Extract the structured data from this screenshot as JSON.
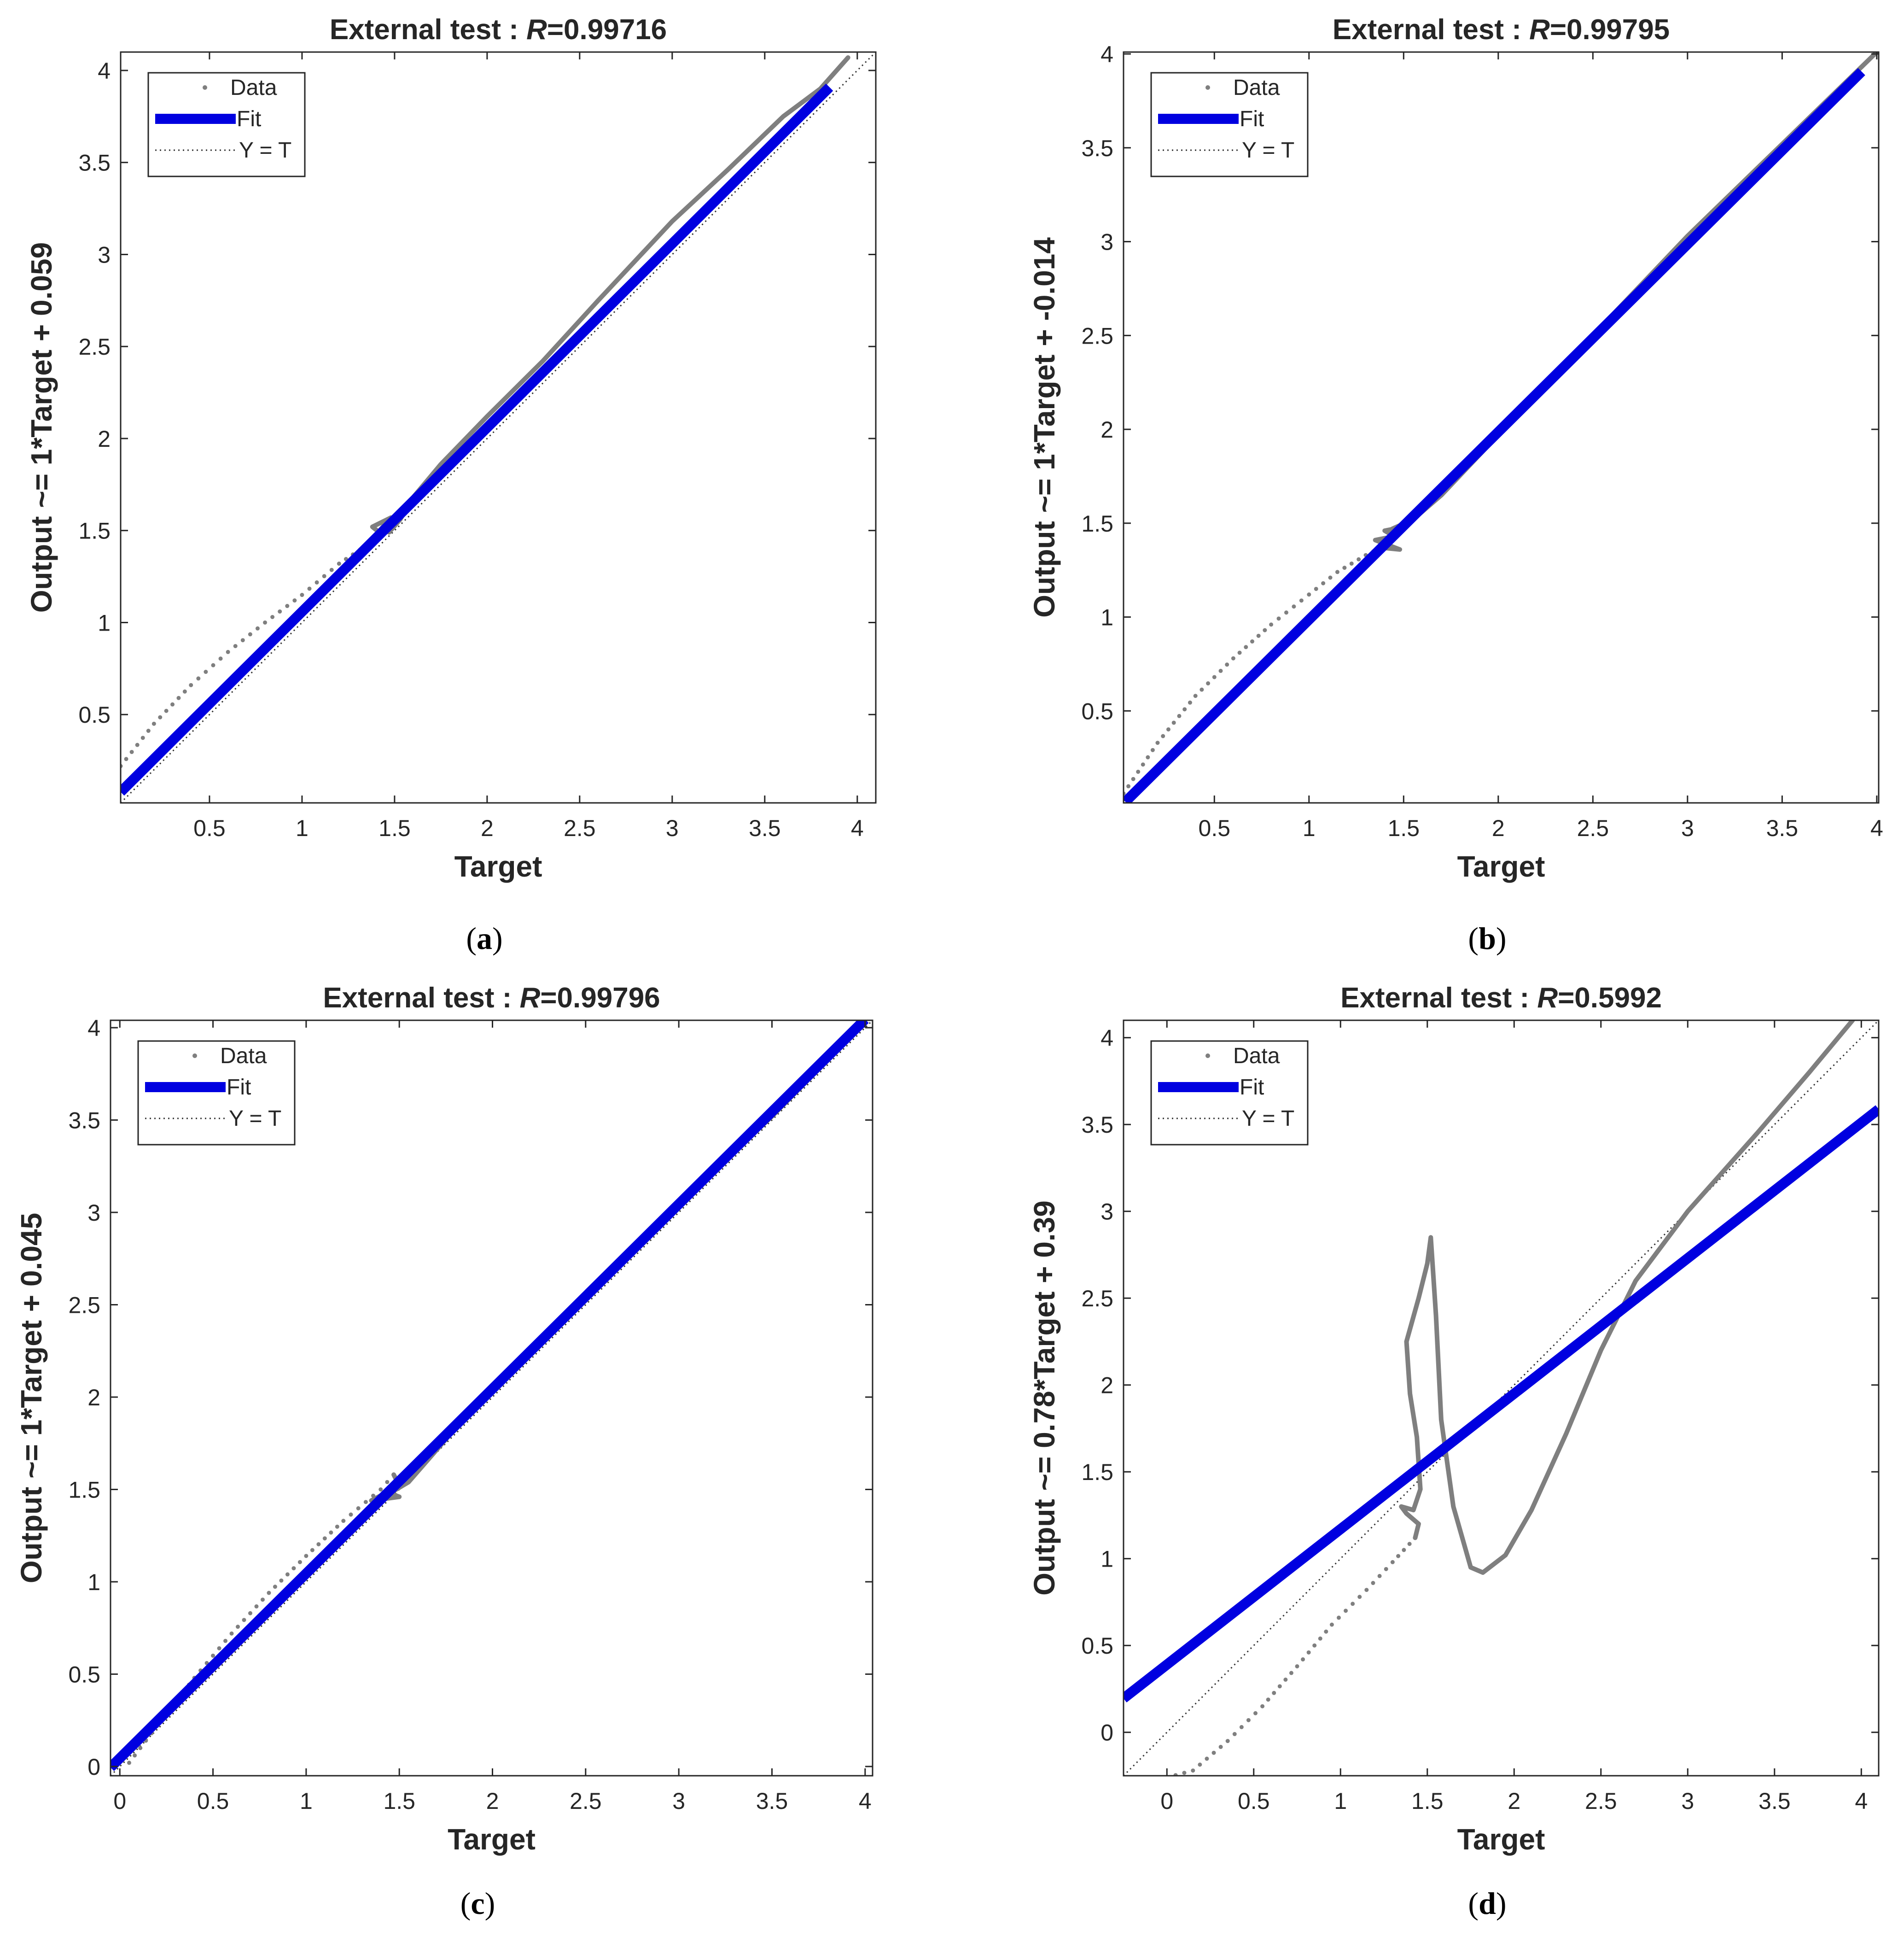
{
  "legend_labels": {
    "data": "Data",
    "fit": "Fit",
    "identity": "Y = T"
  },
  "colors": {
    "data": "#7f7f7f",
    "fit": "#0000e0",
    "identity": "#333333",
    "axis": "#262626"
  },
  "chart_data": [
    {
      "id": "a",
      "type": "scatter",
      "caption": "a",
      "title_prefix": "External test : ",
      "title_r_symbol": "R",
      "title_r_value": "=0.99716",
      "xlabel": "Target",
      "ylabel": "Output ~= 1*Target + 0.059",
      "xlim": [
        0.02,
        4.1
      ],
      "ylim": [
        0.02,
        4.1
      ],
      "xticks": [
        "0.5",
        "1",
        "1.5",
        "2",
        "2.5",
        "3",
        "3.5",
        "4"
      ],
      "yticks": [
        "0.5",
        "1",
        "1.5",
        "2",
        "2.5",
        "3",
        "3.5",
        "4"
      ],
      "fit": {
        "slope": 1.0,
        "intercept": 0.059,
        "x_range": [
          0.02,
          3.85
        ]
      },
      "data_segments": [
        {
          "style": "dots",
          "points": [
            [
              0.02,
              0.22
            ],
            [
              0.2,
              0.45
            ],
            [
              0.4,
              0.66
            ],
            [
              0.6,
              0.84
            ],
            [
              0.8,
              1.0
            ],
            [
              1.0,
              1.15
            ],
            [
              1.2,
              1.32
            ],
            [
              1.35,
              1.42
            ],
            [
              1.43,
              1.48
            ]
          ]
        },
        {
          "style": "line",
          "points": [
            [
              1.43,
              1.48
            ],
            [
              1.38,
              1.52
            ],
            [
              1.48,
              1.57
            ],
            [
              1.42,
              1.5
            ],
            [
              1.5,
              1.55
            ],
            [
              1.47,
              1.49
            ],
            [
              1.53,
              1.56
            ],
            [
              1.6,
              1.68
            ],
            [
              1.75,
              1.86
            ],
            [
              2.0,
              2.12
            ],
            [
              2.3,
              2.42
            ],
            [
              2.6,
              2.75
            ],
            [
              3.0,
              3.18
            ],
            [
              3.3,
              3.46
            ],
            [
              3.6,
              3.75
            ],
            [
              3.8,
              3.9
            ],
            [
              3.95,
              4.07
            ]
          ]
        }
      ]
    },
    {
      "id": "b",
      "type": "scatter",
      "caption": "b",
      "title_prefix": "External test : ",
      "title_r_symbol": "R",
      "title_r_value": "=0.99795",
      "xlabel": "Target",
      "ylabel": "Output ~= 1*Target + -0.014",
      "xlim": [
        0.02,
        4.01
      ],
      "ylim": [
        0.01,
        4.01
      ],
      "xticks": [
        "0.5",
        "1",
        "1.5",
        "2",
        "2.5",
        "3",
        "3.5",
        "4"
      ],
      "yticks": [
        "0.5",
        "1",
        "1.5",
        "2",
        "2.5",
        "3",
        "3.5",
        "4"
      ],
      "fit": {
        "slope": 1.0,
        "intercept": -0.014,
        "x_range": [
          0.03,
          3.92
        ]
      },
      "data_segments": [
        {
          "style": "dots",
          "points": [
            [
              0.02,
              0.06
            ],
            [
              0.2,
              0.33
            ],
            [
              0.4,
              0.58
            ],
            [
              0.6,
              0.78
            ],
            [
              0.8,
              0.96
            ],
            [
              1.0,
              1.12
            ],
            [
              1.15,
              1.24
            ],
            [
              1.3,
              1.33
            ],
            [
              1.38,
              1.37
            ]
          ]
        },
        {
          "style": "line",
          "points": [
            [
              1.38,
              1.37
            ],
            [
              1.48,
              1.36
            ],
            [
              1.35,
              1.41
            ],
            [
              1.45,
              1.43
            ],
            [
              1.4,
              1.46
            ],
            [
              1.5,
              1.48
            ],
            [
              1.44,
              1.47
            ],
            [
              1.55,
              1.52
            ],
            [
              1.7,
              1.65
            ],
            [
              2.0,
              1.97
            ],
            [
              2.5,
              2.5
            ],
            [
              3.0,
              3.03
            ],
            [
              3.5,
              3.52
            ],
            [
              4.0,
              4.01
            ]
          ]
        }
      ]
    },
    {
      "id": "c",
      "type": "scatter",
      "caption": "c",
      "title_prefix": "External test : ",
      "title_r_symbol": "R",
      "title_r_value": "=0.99796",
      "xlabel": "Target",
      "ylabel": "Output ~= 1*Target + 0.045",
      "xlim": [
        -0.05,
        4.04
      ],
      "ylim": [
        -0.05,
        4.04
      ],
      "xticks": [
        "0",
        "0.5",
        "1",
        "1.5",
        "2",
        "2.5",
        "3",
        "3.5",
        "4"
      ],
      "yticks": [
        "0",
        "0.5",
        "1",
        "1.5",
        "2",
        "2.5",
        "3",
        "3.5",
        "4"
      ],
      "fit": {
        "slope": 1.0,
        "intercept": 0.045,
        "x_range": [
          -0.05,
          4.0
        ]
      },
      "data_segments": [
        {
          "style": "dots",
          "points": [
            [
              0.05,
              0.02
            ],
            [
              0.2,
              0.22
            ],
            [
              0.4,
              0.48
            ],
            [
              0.6,
              0.72
            ],
            [
              0.8,
              0.94
            ],
            [
              1.0,
              1.14
            ],
            [
              1.2,
              1.33
            ],
            [
              1.4,
              1.5
            ],
            [
              1.47,
              1.58
            ]
          ]
        },
        {
          "style": "line",
          "points": [
            [
              1.47,
              1.58
            ],
            [
              1.5,
              1.52
            ],
            [
              1.35,
              1.44
            ],
            [
              1.5,
              1.46
            ],
            [
              1.45,
              1.48
            ],
            [
              1.55,
              1.54
            ],
            [
              1.8,
              1.83
            ],
            [
              2.2,
              2.24
            ],
            [
              2.6,
              2.64
            ],
            [
              3.0,
              3.05
            ],
            [
              3.5,
              3.52
            ],
            [
              4.0,
              4.03
            ]
          ]
        }
      ]
    },
    {
      "id": "d",
      "type": "scatter",
      "caption": "d",
      "title_prefix": "External test : ",
      "title_r_symbol": "R",
      "title_r_value": "=0.5992",
      "xlabel": "Target",
      "ylabel": "Output ~= 0.78*Target + 0.39",
      "xlim": [
        -0.25,
        4.1
      ],
      "ylim": [
        -0.25,
        4.1
      ],
      "xticks": [
        "0",
        "0.5",
        "1",
        "1.5",
        "2",
        "2.5",
        "3",
        "3.5",
        "4"
      ],
      "yticks": [
        "0",
        "0.5",
        "1",
        "1.5",
        "2",
        "2.5",
        "3",
        "3.5",
        "4"
      ],
      "fit": {
        "slope": 0.78,
        "intercept": 0.39,
        "x_range": [
          -0.25,
          4.1
        ]
      },
      "data_segments": [
        {
          "style": "dots",
          "points": [
            [
              0.0,
              -0.26
            ],
            [
              0.15,
              -0.22
            ],
            [
              0.35,
              -0.05
            ],
            [
              0.55,
              0.15
            ],
            [
              0.75,
              0.38
            ],
            [
              0.95,
              0.62
            ],
            [
              1.15,
              0.82
            ],
            [
              1.3,
              0.98
            ],
            [
              1.43,
              1.12
            ]
          ]
        },
        {
          "style": "line",
          "points": [
            [
              1.43,
              1.12
            ],
            [
              1.45,
              1.2
            ],
            [
              1.38,
              1.26
            ],
            [
              1.35,
              1.3
            ],
            [
              1.42,
              1.28
            ],
            [
              1.46,
              1.4
            ],
            [
              1.44,
              1.7
            ],
            [
              1.4,
              1.95
            ],
            [
              1.38,
              2.25
            ],
            [
              1.45,
              2.5
            ],
            [
              1.5,
              2.7
            ],
            [
              1.52,
              2.85
            ],
            [
              1.55,
              2.4
            ],
            [
              1.58,
              1.8
            ],
            [
              1.65,
              1.3
            ],
            [
              1.75,
              0.95
            ],
            [
              1.82,
              0.92
            ],
            [
              1.95,
              1.02
            ],
            [
              2.1,
              1.28
            ],
            [
              2.3,
              1.72
            ],
            [
              2.5,
              2.2
            ],
            [
              2.7,
              2.6
            ],
            [
              3.0,
              3.0
            ],
            [
              3.4,
              3.45
            ],
            [
              3.7,
              3.8
            ],
            [
              3.95,
              4.1
            ]
          ]
        }
      ]
    }
  ]
}
